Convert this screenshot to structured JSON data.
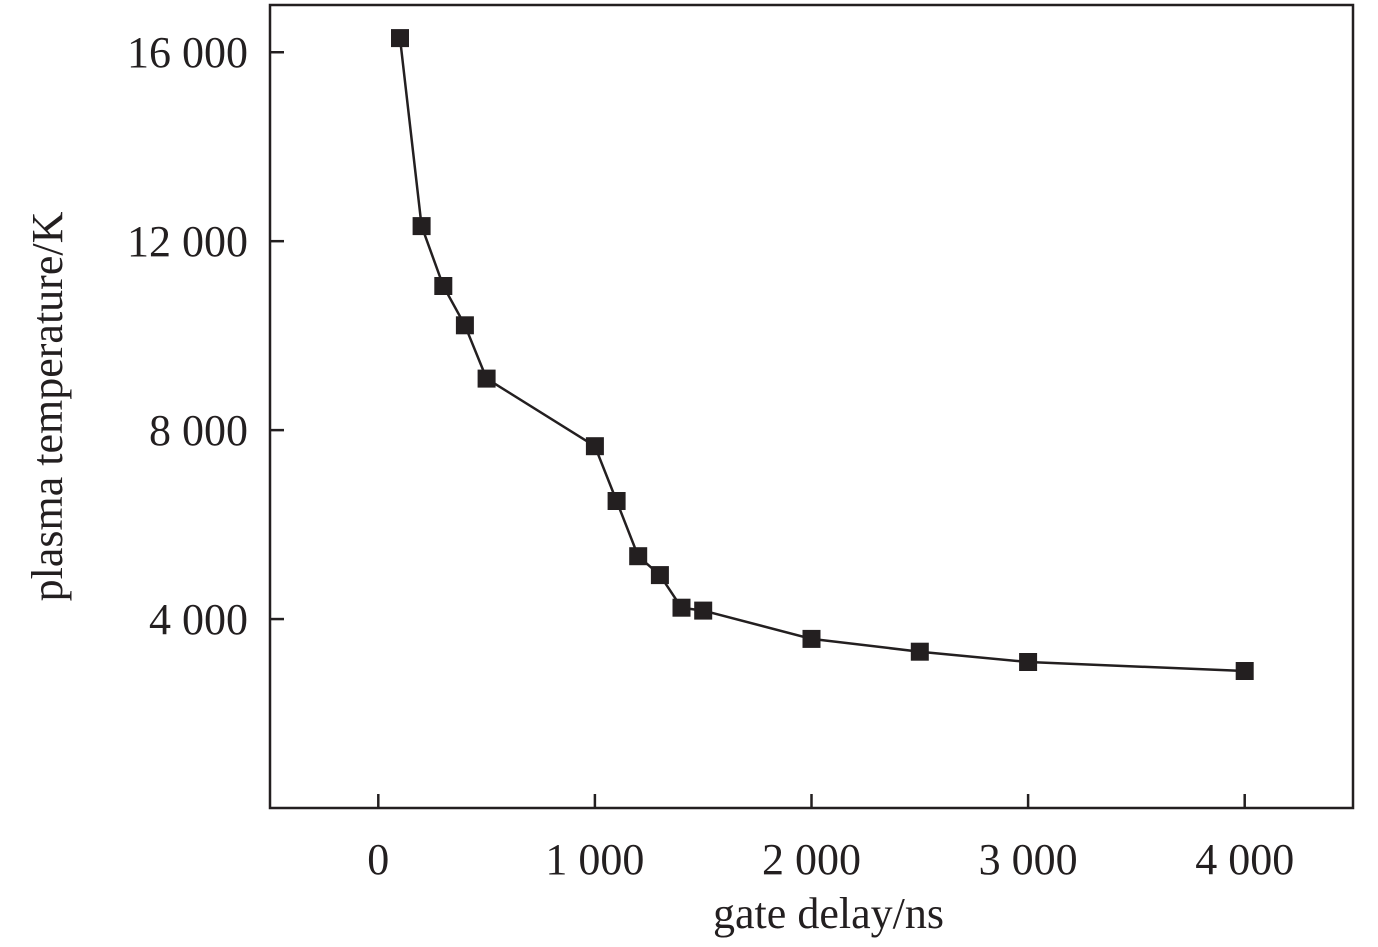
{
  "chart_data": {
    "type": "line",
    "title": "",
    "xlabel": "gate delay/ns",
    "ylabel": "plasma temperature/K",
    "xlim": [
      -500,
      4500
    ],
    "ylim": [
      0,
      17000
    ],
    "xticks": [
      {
        "value": 0,
        "label": "0"
      },
      {
        "value": 1000,
        "label": "1 000"
      },
      {
        "value": 2000,
        "label": "2 000"
      },
      {
        "value": 3000,
        "label": "3 000"
      },
      {
        "value": 4000,
        "label": "4 000"
      }
    ],
    "yticks": [
      {
        "value": 4000,
        "label": "4 000"
      },
      {
        "value": 8000,
        "label": "8 000"
      },
      {
        "value": 12000,
        "label": "12 000"
      },
      {
        "value": 16000,
        "label": "16 000"
      }
    ],
    "grid": false,
    "legend": "none",
    "marker": "square",
    "color": "#231f20",
    "series": [
      {
        "x": [
          100,
          200,
          300,
          400,
          500,
          1000,
          1100,
          1200,
          1300,
          1400,
          1500,
          2000,
          2500,
          3000,
          4000
        ],
        "y": [
          16300,
          12320,
          11050,
          10220,
          9090,
          7660,
          6500,
          5330,
          4930,
          4240,
          4180,
          3580,
          3310,
          3090,
          2900
        ]
      }
    ]
  }
}
